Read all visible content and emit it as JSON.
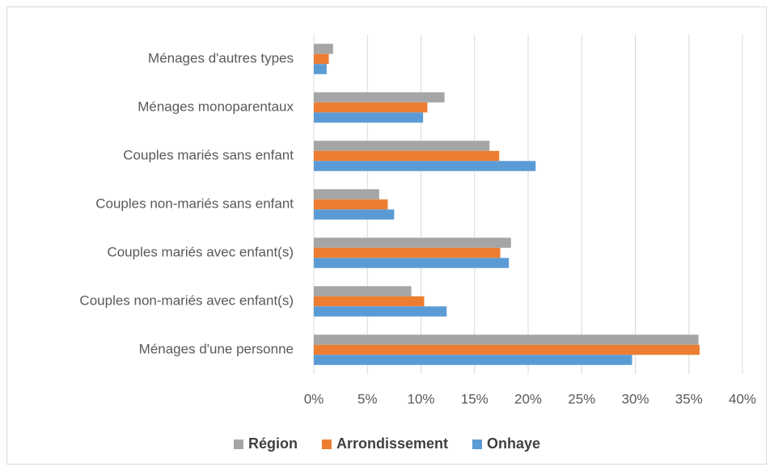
{
  "chart_data": {
    "type": "hbar",
    "categories": [
      "Ménages d'autres types",
      "Ménages monoparentaux",
      "Couples mariés sans enfant",
      "Couples non-mariés sans enfant",
      "Couples mariés avec enfant(s)",
      "Couples non-mariés avec enfant(s)",
      "Ménages d'une personne"
    ],
    "series": [
      {
        "name": "Région",
        "color": "#a5a5a5",
        "values": [
          1.8,
          12.2,
          16.4,
          6.1,
          18.4,
          9.1,
          35.9
        ]
      },
      {
        "name": "Arrondissement",
        "color": "#ed7d31",
        "values": [
          1.4,
          10.6,
          17.3,
          6.9,
          17.4,
          10.3,
          36.0
        ]
      },
      {
        "name": "Onhaye",
        "color": "#5b9bd5",
        "values": [
          1.2,
          10.2,
          20.7,
          7.5,
          18.2,
          12.4,
          29.7
        ]
      }
    ],
    "xlim": [
      0,
      40
    ],
    "xticks": [
      {
        "value": 0,
        "label": "0%"
      },
      {
        "value": 5,
        "label": "5%"
      },
      {
        "value": 10,
        "label": "10%"
      },
      {
        "value": 15,
        "label": "15%"
      },
      {
        "value": 20,
        "label": "20%"
      },
      {
        "value": 25,
        "label": "25%"
      },
      {
        "value": 30,
        "label": "30%"
      },
      {
        "value": 35,
        "label": "35%"
      },
      {
        "value": 40,
        "label": "40%"
      }
    ],
    "grid": true,
    "legend": "bottom"
  }
}
